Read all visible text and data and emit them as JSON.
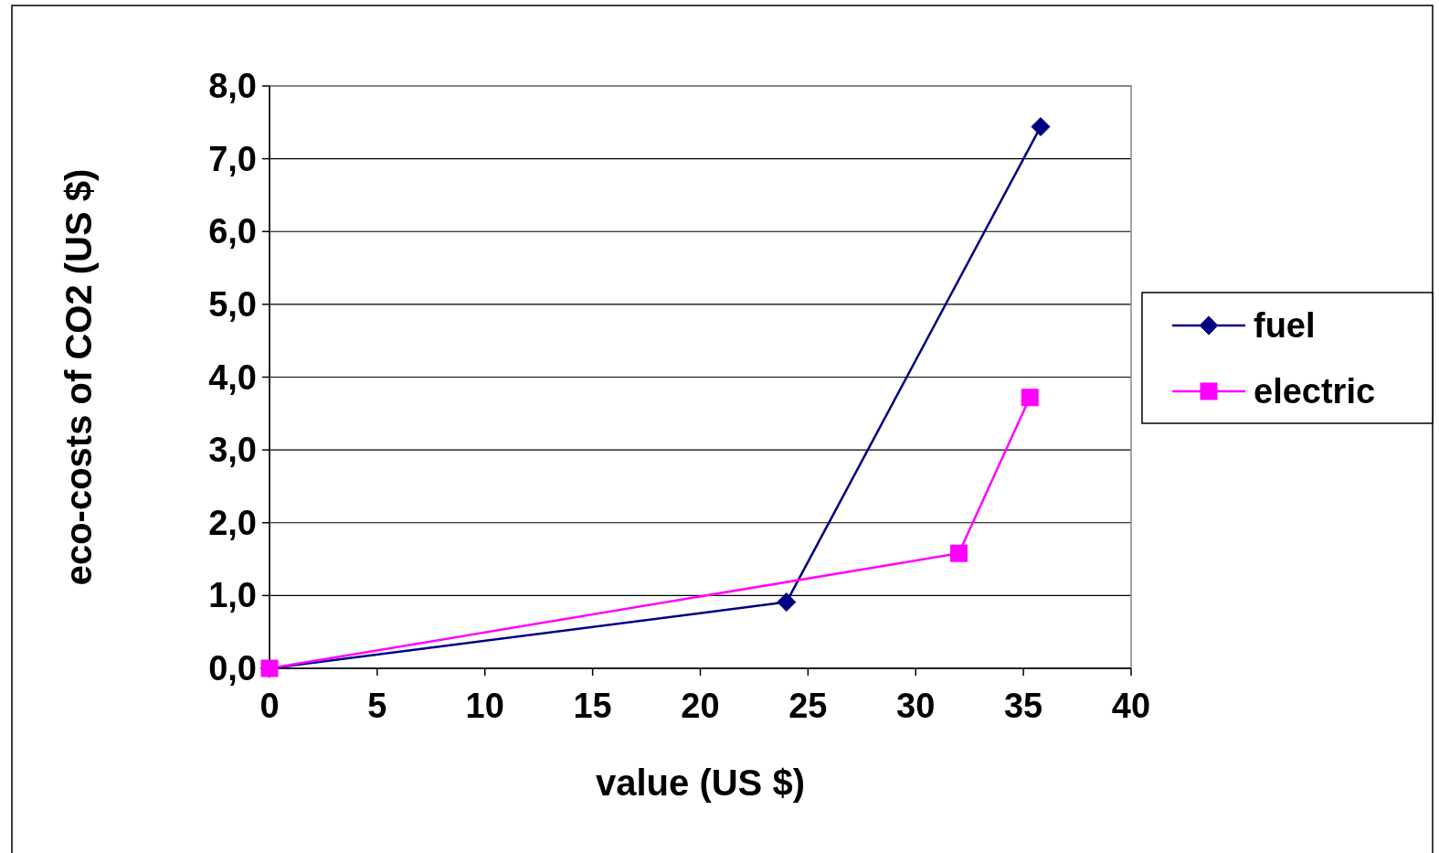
{
  "chart_data": {
    "type": "line",
    "xlabel": "value (US $)",
    "ylabel": "eco-costs of CO2 (US $)",
    "xlim": [
      0,
      40
    ],
    "xticks": [
      0,
      5,
      10,
      15,
      20,
      25,
      30,
      35,
      40
    ],
    "ylim": [
      0,
      8
    ],
    "yticks": [
      {
        "value": 0,
        "label": "0,0"
      },
      {
        "value": 1,
        "label": "1,0"
      },
      {
        "value": 2,
        "label": "2,0"
      },
      {
        "value": 3,
        "label": "3,0"
      },
      {
        "value": 4,
        "label": "4,0"
      },
      {
        "value": 5,
        "label": "5,0"
      },
      {
        "value": 6,
        "label": "6,0"
      },
      {
        "value": 7,
        "label": "7,0"
      },
      {
        "value": 8,
        "label": "8,0"
      }
    ],
    "grid": "y",
    "legend": "right",
    "series": [
      {
        "name": "fuel",
        "color": "#000080",
        "marker": "diamond",
        "x": [
          0,
          24.0,
          35.8
        ],
        "values": [
          0,
          0.91,
          7.44
        ]
      },
      {
        "name": "electric",
        "color": "#ff00ff",
        "marker": "square",
        "x": [
          0,
          32.0,
          35.3
        ],
        "values": [
          0,
          1.58,
          3.72
        ]
      }
    ]
  }
}
